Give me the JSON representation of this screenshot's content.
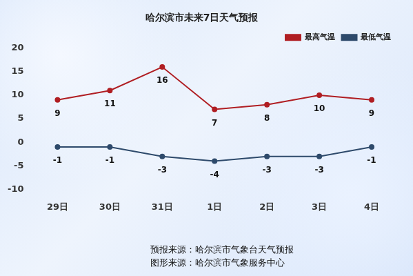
{
  "chart_data": {
    "type": "line",
    "title": "哈尔滨市未来7日天气预报",
    "categories": [
      "29日",
      "30日",
      "31日",
      "1日",
      "2日",
      "3日",
      "4日"
    ],
    "series": [
      {
        "name": "最高气温",
        "color": "#b01e23",
        "values": [
          9,
          11,
          16,
          7,
          8,
          10,
          9
        ]
      },
      {
        "name": "最低气温",
        "color": "#2e4a6b",
        "values": [
          -1,
          -1,
          -3,
          -4,
          -3,
          -3,
          -1
        ]
      }
    ],
    "ylim": [
      -10,
      20
    ],
    "yticks": [
      -10,
      -5,
      0,
      5,
      10,
      15,
      20
    ],
    "grid": false,
    "legend": "top-right",
    "data_labels": true,
    "annotations": [
      "预报来源：哈尔滨市气象台天气预报",
      "图形来源：哈尔滨市气象服务中心"
    ]
  }
}
